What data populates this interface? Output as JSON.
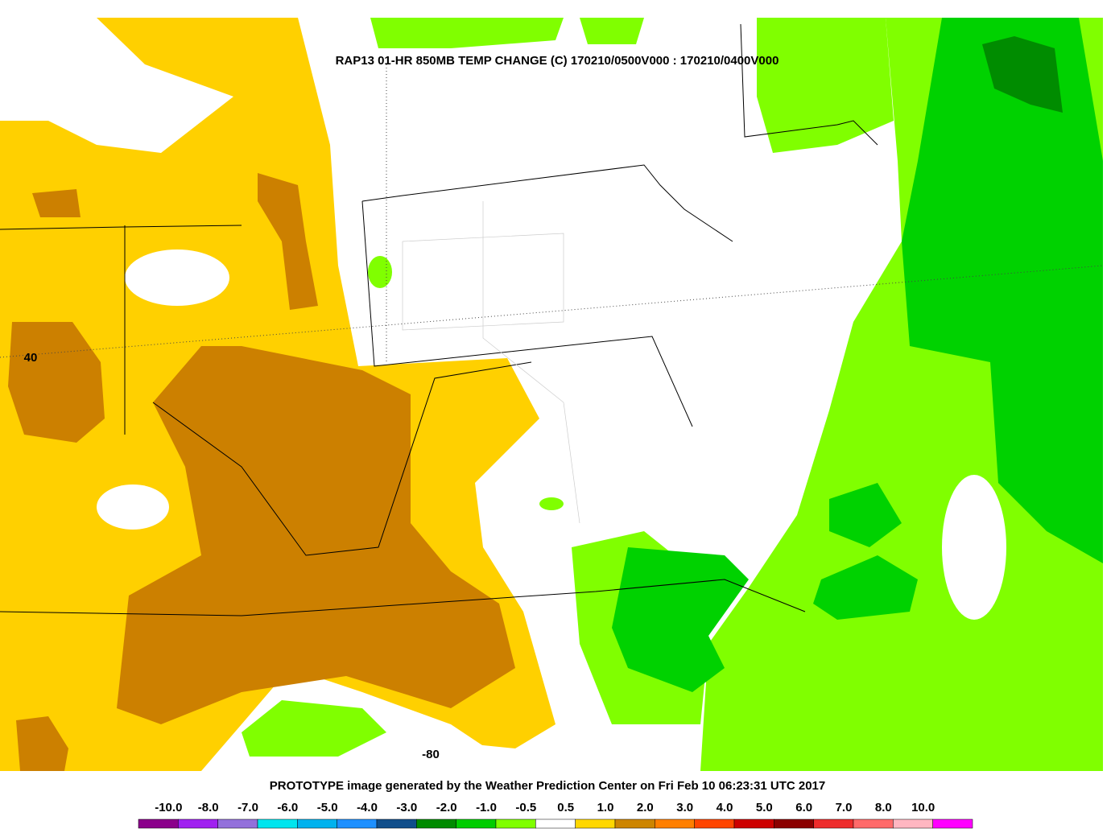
{
  "header": {
    "title": "RAP13 01-HR 850MB TEMP CHANGE (C) 170210/0500V000 : 170210/0400V000"
  },
  "map": {
    "lat_label": "40",
    "lon_label": "-80"
  },
  "footer": {
    "text": "PROTOTYPE image generated by the Weather Prediction Center on Fri Feb 10 06:23:31 UTC 2017"
  },
  "legend": {
    "labels": [
      "-10.0",
      "-8.0",
      "-7.0",
      "-6.0",
      "-5.0",
      "-4.0",
      "-3.0",
      "-2.0",
      "-1.0",
      "-0.5",
      "0.5",
      "1.0",
      "2.0",
      "3.0",
      "4.0",
      "5.0",
      "6.0",
      "7.0",
      "8.0",
      "10.0"
    ],
    "colors": [
      "#8b008b",
      "#a020f0",
      "#9370db",
      "#00e5ee",
      "#00b2ee",
      "#1e90ff",
      "#104e8b",
      "#008b00",
      "#00cd00",
      "#7fff00",
      "#ffffff",
      "#ffd700",
      "#cd8500",
      "#ff7f00",
      "#ff4500",
      "#cd0000",
      "#8b0000",
      "#ee2c2c",
      "#ff6a6a",
      "#ffb6c1",
      "#ff00ff"
    ]
  }
}
